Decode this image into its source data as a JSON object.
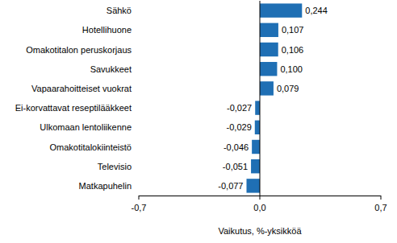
{
  "chart_data": {
    "type": "bar",
    "orientation": "horizontal",
    "categories": [
      "Sähkö",
      "Hotellihuone",
      "Omakotitalon peruskorjaus",
      "Savukkeet",
      "Vapaarahoitteiset vuokrat",
      "Ei-korvattavat reseptilääkkeet",
      "Ulkomaan lentoliikenne",
      "Omakotitalokiinteistö",
      "Televisio",
      "Matkapuhelin"
    ],
    "values": [
      0.244,
      0.107,
      0.106,
      0.1,
      0.079,
      -0.027,
      -0.029,
      -0.046,
      -0.051,
      -0.077
    ],
    "value_labels": [
      "0,244",
      "0,107",
      "0,106",
      "0,100",
      "0,079",
      "-0,027",
      "-0,029",
      "-0,046",
      "-0,051",
      "-0,077"
    ],
    "data_labels": true,
    "color": "#1f6fb4",
    "xlim": [
      -0.7,
      0.7
    ],
    "xticks": [
      {
        "value": -0.7,
        "label": "-0,7"
      },
      {
        "value": 0,
        "label": "0,0"
      },
      {
        "value": 0.7,
        "label": "0,7"
      }
    ],
    "xlabel": "Vaikutus, %-yksikköä",
    "grid": false
  }
}
